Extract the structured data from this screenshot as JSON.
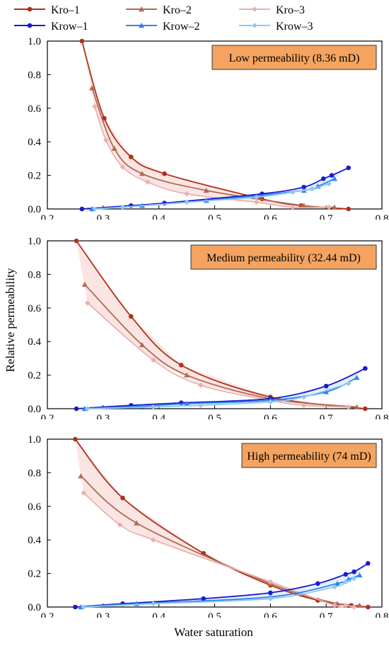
{
  "legend": [
    {
      "name": "Kro–1",
      "color": "#b0301c",
      "marker": "circle"
    },
    {
      "name": "Kro–2",
      "color": "#b06a54",
      "marker": "triangle"
    },
    {
      "name": "Kro–3",
      "color": "#eab0ae",
      "marker": "diamond"
    },
    {
      "name": "Krow–1",
      "color": "#1a1ad0",
      "marker": "circle"
    },
    {
      "name": "Krow–2",
      "color": "#2e86e8",
      "marker": "triangle"
    },
    {
      "name": "Krow–3",
      "color": "#90c8f4",
      "marker": "diamond"
    }
  ],
  "ylabel": "Relative permeability",
  "xlabel": "Water saturation",
  "annotation_style": {
    "fill": "#f4a460",
    "border": "#333333"
  },
  "chart_data": [
    {
      "type": "line",
      "annotation": "Low permeability (8.36 mD)",
      "xlim": [
        0.2,
        0.8
      ],
      "ylim": [
        0,
        1.0
      ],
      "xticks": [
        "0.2",
        "0.3",
        "0.4",
        "0.5",
        "0.6",
        "0.7",
        "0.8"
      ],
      "yticks": [
        "0.0",
        "0.2",
        "0.4",
        "0.6",
        "0.8",
        "1.0"
      ],
      "series": [
        {
          "name": "Kro–1",
          "x": [
            0.262,
            0.302,
            0.35,
            0.41,
            0.585,
            0.655,
            0.74
          ],
          "y": [
            1.0,
            0.54,
            0.31,
            0.21,
            0.06,
            0.02,
            0.0
          ]
        },
        {
          "name": "Kro–2",
          "x": [
            0.28,
            0.32,
            0.37,
            0.485,
            0.66,
            0.715
          ],
          "y": [
            0.72,
            0.36,
            0.21,
            0.11,
            0.02,
            0.01
          ]
        },
        {
          "name": "Kro–3",
          "x": [
            0.285,
            0.305,
            0.335,
            0.38,
            0.45,
            0.575,
            0.64,
            0.705
          ],
          "y": [
            0.61,
            0.41,
            0.25,
            0.16,
            0.09,
            0.04,
            0.01,
            0.01
          ]
        },
        {
          "name": "Krow–1",
          "x": [
            0.262,
            0.35,
            0.41,
            0.585,
            0.66,
            0.695,
            0.71,
            0.74
          ],
          "y": [
            0.0,
            0.02,
            0.035,
            0.09,
            0.13,
            0.18,
            0.2,
            0.245
          ]
        },
        {
          "name": "Krow–2",
          "x": [
            0.28,
            0.37,
            0.485,
            0.66,
            0.685,
            0.715
          ],
          "y": [
            0.0,
            0.02,
            0.05,
            0.11,
            0.135,
            0.18
          ]
        },
        {
          "name": "Krow–3",
          "x": [
            0.285,
            0.335,
            0.45,
            0.575,
            0.64,
            0.675,
            0.705
          ],
          "y": [
            0.0,
            0.01,
            0.04,
            0.07,
            0.1,
            0.12,
            0.15
          ]
        }
      ]
    },
    {
      "type": "line",
      "annotation": "Medium permeability (32.44 mD)",
      "xlim": [
        0.2,
        0.8
      ],
      "ylim": [
        0,
        1.0
      ],
      "xticks": [
        "0.2",
        "0.3",
        "0.4",
        "0.5",
        "0.6",
        "0.7",
        "0.8"
      ],
      "yticks": [
        "0.0",
        "0.2",
        "0.4",
        "0.6",
        "0.8",
        "1.0"
      ],
      "series": [
        {
          "name": "Kro–1",
          "x": [
            0.252,
            0.35,
            0.44,
            0.6,
            0.77
          ],
          "y": [
            1.0,
            0.55,
            0.26,
            0.07,
            0.0
          ]
        },
        {
          "name": "Kro–2",
          "x": [
            0.267,
            0.37,
            0.45,
            0.6,
            0.755
          ],
          "y": [
            0.74,
            0.38,
            0.2,
            0.06,
            0.01
          ]
        },
        {
          "name": "Kro–3",
          "x": [
            0.272,
            0.39,
            0.475,
            0.6,
            0.66,
            0.74
          ],
          "y": [
            0.63,
            0.29,
            0.14,
            0.05,
            0.02,
            0.01
          ]
        },
        {
          "name": "Krow–1",
          "x": [
            0.252,
            0.35,
            0.44,
            0.6,
            0.7,
            0.77
          ],
          "y": [
            0.0,
            0.02,
            0.035,
            0.06,
            0.135,
            0.24
          ]
        },
        {
          "name": "Krow–2",
          "x": [
            0.267,
            0.37,
            0.45,
            0.6,
            0.7,
            0.755
          ],
          "y": [
            0.0,
            0.015,
            0.03,
            0.05,
            0.1,
            0.185
          ]
        },
        {
          "name": "Krow–3",
          "x": [
            0.272,
            0.39,
            0.475,
            0.6,
            0.66,
            0.74
          ],
          "y": [
            0.0,
            0.01,
            0.02,
            0.04,
            0.07,
            0.15
          ]
        }
      ]
    },
    {
      "type": "line",
      "annotation": "High permeability (74 mD)",
      "xlim": [
        0.2,
        0.8
      ],
      "ylim": [
        0,
        1.0
      ],
      "xticks": [
        "0.2",
        "0.3",
        "0.4",
        "0.5",
        "0.6",
        "0.7",
        "0.8"
      ],
      "yticks": [
        "0.0",
        "0.2",
        "0.4",
        "0.6",
        "0.8",
        "1.0"
      ],
      "series": [
        {
          "name": "Kro–1",
          "x": [
            0.25,
            0.335,
            0.48,
            0.6,
            0.685,
            0.745,
            0.775
          ],
          "y": [
            1.0,
            0.65,
            0.32,
            0.13,
            0.04,
            0.01,
            0.0
          ]
        },
        {
          "name": "Kro–2",
          "x": [
            0.26,
            0.36,
            0.6,
            0.72,
            0.76
          ],
          "y": [
            0.78,
            0.5,
            0.14,
            0.02,
            0.01
          ]
        },
        {
          "name": "Kro–3",
          "x": [
            0.265,
            0.33,
            0.39,
            0.6,
            0.715,
            0.735,
            0.75
          ],
          "y": [
            0.68,
            0.49,
            0.4,
            0.15,
            0.01,
            0.01,
            0.0
          ]
        },
        {
          "name": "Krow–1",
          "x": [
            0.25,
            0.335,
            0.48,
            0.6,
            0.685,
            0.735,
            0.75,
            0.775
          ],
          "y": [
            0.0,
            0.02,
            0.05,
            0.085,
            0.14,
            0.195,
            0.21,
            0.26
          ]
        },
        {
          "name": "Krow–2",
          "x": [
            0.26,
            0.36,
            0.6,
            0.72,
            0.74,
            0.76
          ],
          "y": [
            0.0,
            0.02,
            0.06,
            0.14,
            0.165,
            0.19
          ]
        },
        {
          "name": "Krow–3",
          "x": [
            0.265,
            0.39,
            0.6,
            0.715,
            0.735,
            0.75
          ],
          "y": [
            0.0,
            0.02,
            0.05,
            0.12,
            0.15,
            0.17
          ]
        }
      ]
    }
  ]
}
